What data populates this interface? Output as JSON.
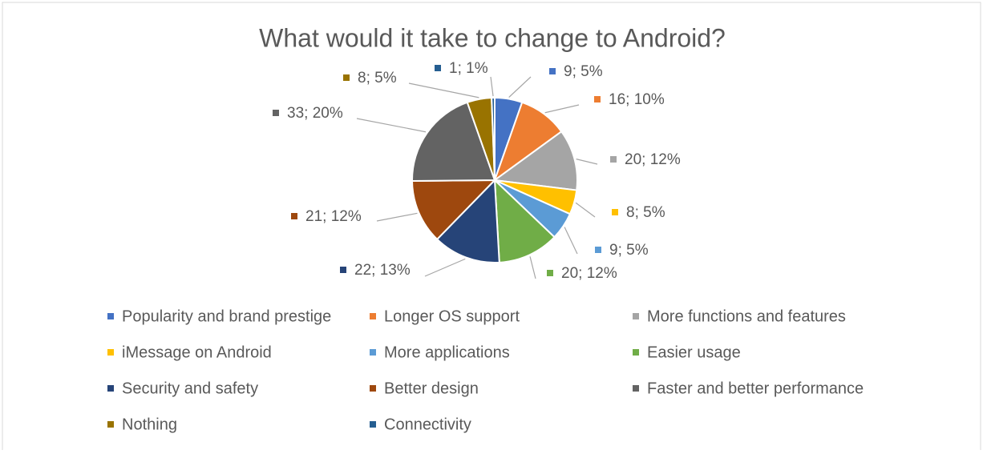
{
  "chart_data": {
    "type": "pie",
    "title": "What would it take to change to Android?",
    "categories": [
      "Popularity and brand prestige",
      "Longer OS support",
      "More functions and features",
      "iMessage on Android",
      "More applications",
      "Easier usage",
      "Security and safety",
      "Better design",
      "Faster and better performance",
      "Nothing",
      "Connectivity"
    ],
    "values": [
      9,
      16,
      20,
      8,
      9,
      20,
      22,
      21,
      33,
      8,
      1
    ],
    "value_labels": [
      "9; 5%",
      "16; 10%",
      "20; 12%",
      "8; 5%",
      "9; 5%",
      "20; 12%",
      "22; 13%",
      "21; 12%",
      "33; 20%",
      "8; 5%",
      "1; 1%"
    ],
    "colors": [
      "#4472c4",
      "#ed7d31",
      "#a5a5a5",
      "#ffc000",
      "#5b9bd5",
      "#70ad47",
      "#264478",
      "#9e480e",
      "#636363",
      "#997300",
      "#255e91"
    ],
    "legend": "bottom"
  }
}
